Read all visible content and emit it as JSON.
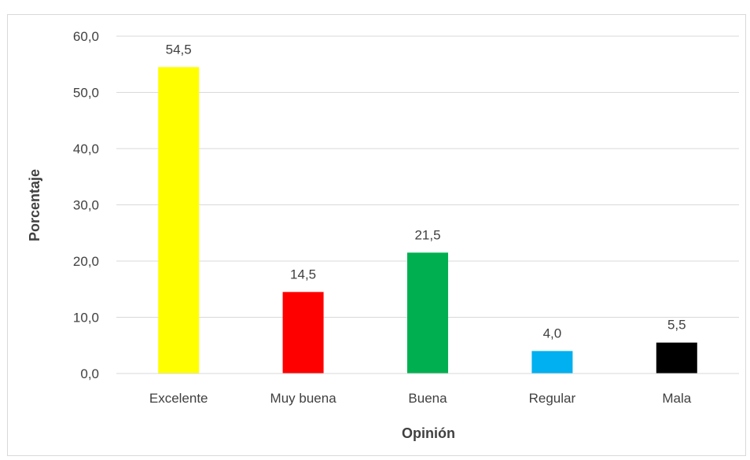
{
  "chart_data": {
    "type": "bar",
    "title": "",
    "xlabel": "Opinión",
    "ylabel": "Porcentaje",
    "categories": [
      "Excelente",
      "Muy buena",
      "Buena",
      "Regular",
      "Mala"
    ],
    "values": [
      54.5,
      14.5,
      21.5,
      4.0,
      5.5
    ],
    "value_labels": [
      "54,5",
      "14,5",
      "21,5",
      "4,0",
      "5,5"
    ],
    "colors": [
      "#ffff00",
      "#ff0000",
      "#00b050",
      "#00b0f0",
      "#000000"
    ],
    "ylim": [
      0,
      60
    ],
    "yticks": [
      0,
      10,
      20,
      30,
      40,
      50,
      60
    ],
    "ytick_labels": [
      "0,0",
      "10,0",
      "20,0",
      "30,0",
      "40,0",
      "50,0",
      "60,0"
    ],
    "grid": true,
    "legend": false
  }
}
